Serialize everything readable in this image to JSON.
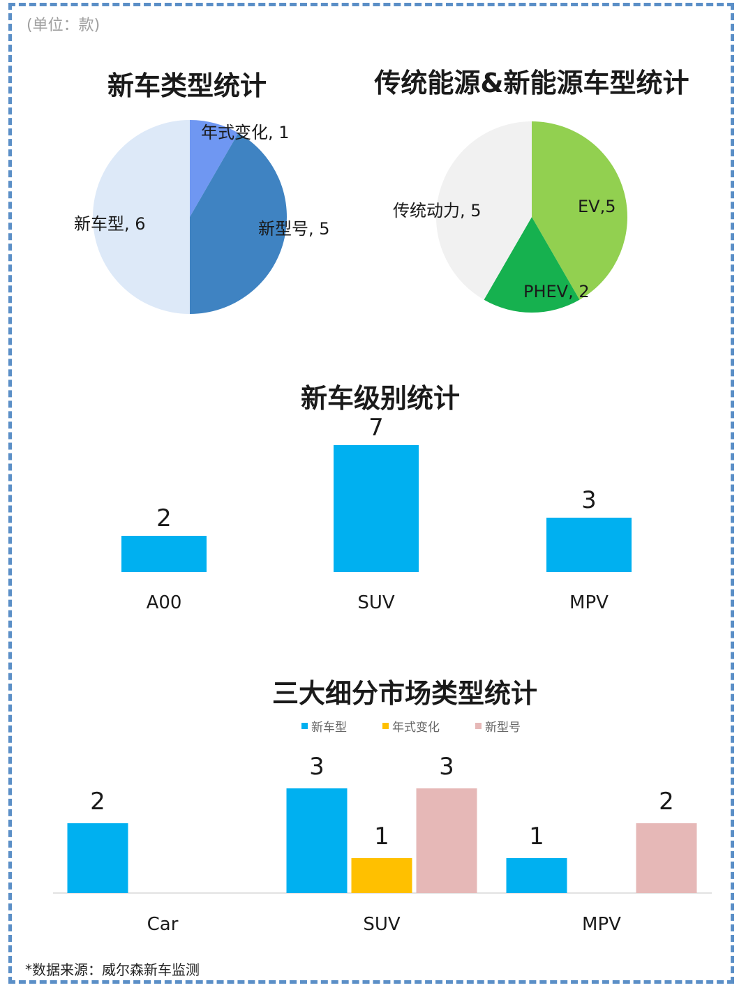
{
  "unit_note": "(单位：款)",
  "source_note": "*数据来源：威尔森新车监测",
  "colors": {
    "frame": "#5b8fc7",
    "pie1": [
      "#6f97f2",
      "#3f83c2",
      "#dde9f8"
    ],
    "pie2": [
      "#92d050",
      "#16b14f",
      "#f1f1f1"
    ],
    "bar": "#00b0f0",
    "series": [
      "#00b0f0",
      "#ffc000",
      "#e6b8b7"
    ]
  },
  "chart_data": [
    {
      "type": "pie",
      "title": "新车类型统计",
      "slices": [
        {
          "label": "年式变化, 1",
          "name": "年式变化",
          "value": 1
        },
        {
          "label": "新型号, 5",
          "name": "新型号",
          "value": 5
        },
        {
          "label": "新车型, 6",
          "name": "新车型",
          "value": 6
        }
      ]
    },
    {
      "type": "pie",
      "title": "传统能源&新能源车型统计",
      "slices": [
        {
          "label": "EV,5",
          "name": "EV",
          "value": 5
        },
        {
          "label": "PHEV, 2",
          "name": "PHEV",
          "value": 2
        },
        {
          "label": "传统动力, 5",
          "name": "传统动力",
          "value": 5
        }
      ]
    },
    {
      "type": "bar",
      "title": "新车级别统计",
      "categories": [
        "A00",
        "SUV",
        "MPV"
      ],
      "values": [
        2,
        7,
        3
      ],
      "ylim": [
        0,
        7
      ]
    },
    {
      "type": "bar",
      "title": "三大细分市场类型统计",
      "categories": [
        "Car",
        "SUV",
        "MPV"
      ],
      "series": [
        {
          "name": "新车型",
          "values": [
            2,
            3,
            1
          ]
        },
        {
          "name": "年式变化",
          "values": [
            null,
            1,
            null
          ]
        },
        {
          "name": "新型号",
          "values": [
            null,
            3,
            2
          ]
        }
      ],
      "ylim": [
        0,
        3
      ],
      "legend": "top"
    }
  ]
}
